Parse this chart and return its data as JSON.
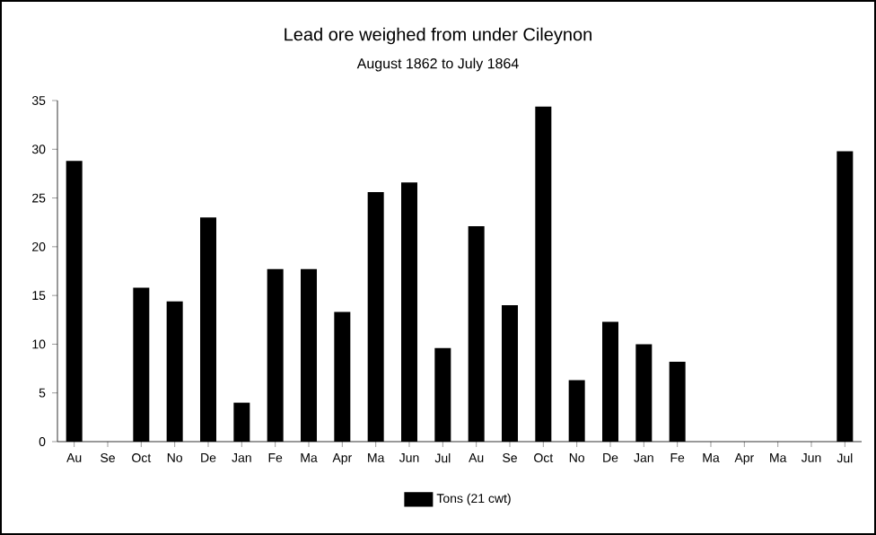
{
  "chart_data": {
    "type": "bar",
    "title": "Lead ore weighed from under Cileynon",
    "subtitle": "August 1862 to July 1864",
    "categories": [
      "Au",
      "Se",
      "Oct",
      "No",
      "De",
      "Jan",
      "Fe",
      "Ma",
      "Apr",
      "Ma",
      "Jun",
      "Jul",
      "Au",
      "Se",
      "Oct",
      "No",
      "De",
      "Jan",
      "Fe",
      "Ma",
      "Apr",
      "Ma",
      "Jun",
      "Jul"
    ],
    "series": [
      {
        "name": "Tons (21 cwt)",
        "color": "#000000",
        "values": [
          28.8,
          0,
          15.8,
          14.4,
          23,
          4,
          17.7,
          17.7,
          13.3,
          25.6,
          26.6,
          9.6,
          22.1,
          14,
          34.4,
          6.3,
          12.3,
          10,
          8.2,
          0,
          0,
          0,
          0,
          29.8
        ]
      }
    ],
    "ylim": [
      0,
      35
    ],
    "yticks": [
      0,
      5,
      10,
      15,
      20,
      25,
      30,
      35
    ],
    "grid": false,
    "legend": "bottom"
  }
}
